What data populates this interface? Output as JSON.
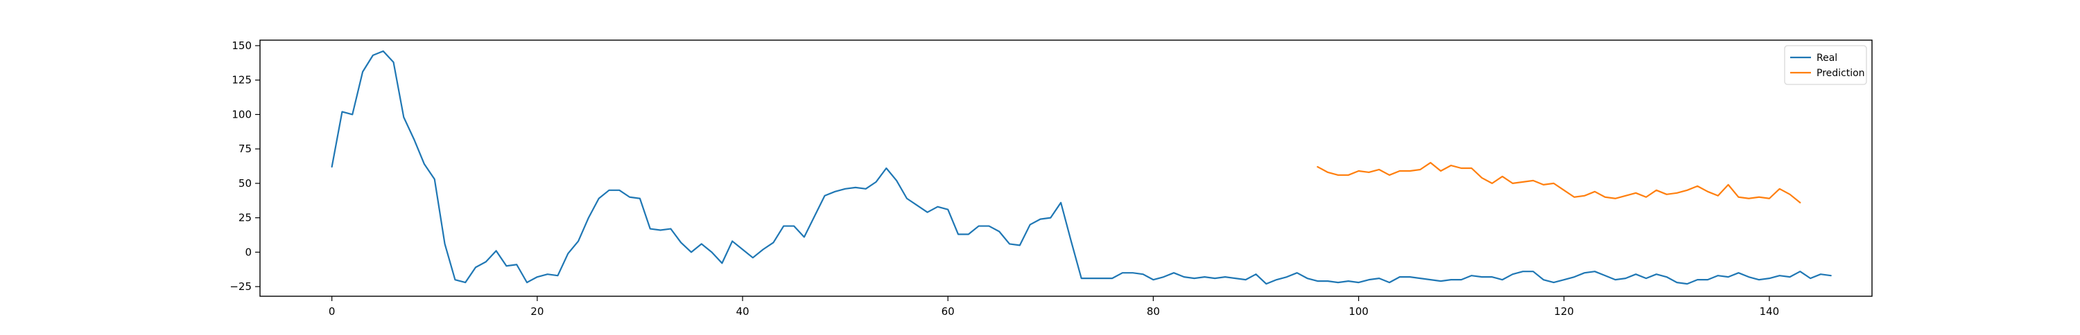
{
  "chart_data": {
    "type": "line",
    "xlim": [
      -7,
      150
    ],
    "ylim": [
      -32,
      154
    ],
    "x_ticks": [
      0,
      20,
      40,
      60,
      80,
      100,
      120,
      140
    ],
    "y_ticks": [
      -25,
      0,
      25,
      50,
      75,
      100,
      125,
      150
    ],
    "x_tick_labels": [
      "0",
      "20",
      "40",
      "60",
      "80",
      "100",
      "120",
      "140"
    ],
    "y_tick_labels": [
      "−25",
      "0",
      "25",
      "50",
      "75",
      "100",
      "125",
      "150"
    ],
    "legend_position": "top-right",
    "grid": false,
    "series": [
      {
        "name": "Real",
        "color": "#1f77b4",
        "x_start": 0,
        "values": [
          62,
          102,
          100,
          131,
          143,
          146,
          138,
          98,
          82,
          64,
          53,
          6,
          -20,
          -22,
          -11,
          -7,
          1,
          -10,
          -9,
          -22,
          -18,
          -16,
          -17,
          -1,
          8,
          25,
          39,
          45,
          45,
          40,
          39,
          17,
          16,
          17,
          7,
          0,
          6,
          0,
          -8,
          8,
          2,
          -4,
          2,
          7,
          19,
          19,
          11,
          26,
          41,
          44,
          46,
          47,
          46,
          51,
          61,
          52,
          39,
          34,
          29,
          33,
          31,
          13,
          13,
          19,
          19,
          15,
          6,
          5,
          20,
          24,
          25,
          36,
          8,
          -19,
          -19,
          -19,
          -19,
          -15,
          -15,
          -16,
          -20,
          -18,
          -15,
          -18,
          -19,
          -18,
          -19,
          -18,
          -19,
          -20,
          -16,
          -23,
          -20,
          -18,
          -15,
          -19,
          -21,
          -21,
          -22,
          -21,
          -22,
          -20,
          -19,
          -22,
          -18,
          -18,
          -19,
          -20,
          -21,
          -20,
          -20,
          -17,
          -18,
          -18,
          -20,
          -16,
          -14,
          -14,
          -20,
          -22,
          -20,
          -18,
          -15,
          -14,
          -17,
          -20,
          -19,
          -16,
          -19,
          -16,
          -18,
          -22,
          -23,
          -20,
          -20,
          -17,
          -18,
          -15,
          -18,
          -20,
          -19,
          -17,
          -18,
          -14,
          -19,
          -16,
          -17
        ]
      },
      {
        "name": "Prediction",
        "color": "#ff7f0e",
        "x_start": 96,
        "values": [
          62,
          58,
          56,
          56,
          59,
          58,
          60,
          56,
          59,
          59,
          60,
          65,
          59,
          63,
          61,
          61,
          54,
          50,
          55,
          50,
          51,
          52,
          49,
          50,
          45,
          40,
          41,
          44,
          40,
          39,
          41,
          43,
          40,
          45,
          42,
          43,
          45,
          48,
          44,
          41,
          49,
          40,
          39,
          40,
          39,
          46,
          42,
          36
        ]
      }
    ]
  }
}
